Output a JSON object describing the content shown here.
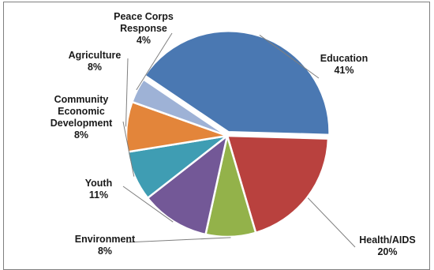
{
  "chart_data": {
    "type": "pie",
    "title": "",
    "slices": [
      {
        "label_lines": [
          "Education"
        ],
        "value": 41,
        "display": "41%",
        "color": "#4a78b2"
      },
      {
        "label_lines": [
          "Health/AIDS"
        ],
        "value": 20,
        "display": "20%",
        "color": "#b9413e"
      },
      {
        "label_lines": [
          "Environment"
        ],
        "value": 8,
        "display": "8%",
        "color": "#93b24a"
      },
      {
        "label_lines": [
          "Youth"
        ],
        "value": 11,
        "display": "11%",
        "color": "#735897"
      },
      {
        "label_lines": [
          "Community",
          "Economic",
          "Development"
        ],
        "value": 8,
        "display": "8%",
        "color": "#3f9db3"
      },
      {
        "label_lines": [
          "Agriculture"
        ],
        "value": 8,
        "display": "8%",
        "color": "#e3853a"
      },
      {
        "label_lines": [
          "Peace Corps",
          "Response"
        ],
        "value": 4,
        "display": "4%",
        "color": "#9eb2d6"
      }
    ],
    "legend": "none",
    "labels": "outside-with-leader-lines"
  }
}
